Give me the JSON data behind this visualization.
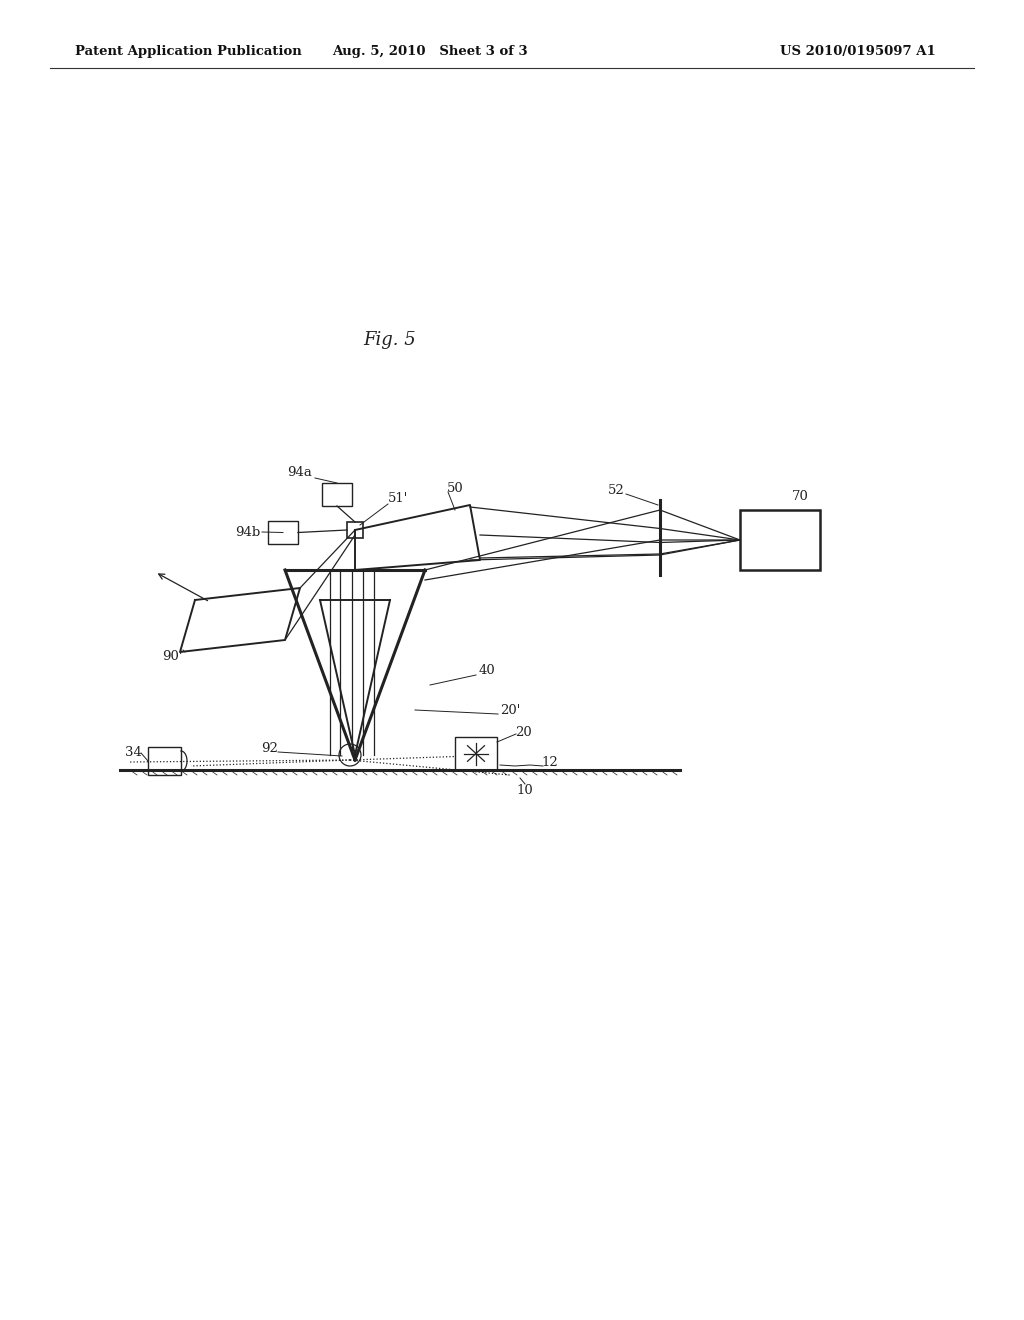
{
  "bg_color": "#ffffff",
  "line_color": "#222222",
  "header_left": "Patent Application Publication",
  "header_mid": "Aug. 5, 2010   Sheet 3 of 3",
  "header_right": "US 2010/0195097 A1",
  "fig_title": "Fig. 5"
}
